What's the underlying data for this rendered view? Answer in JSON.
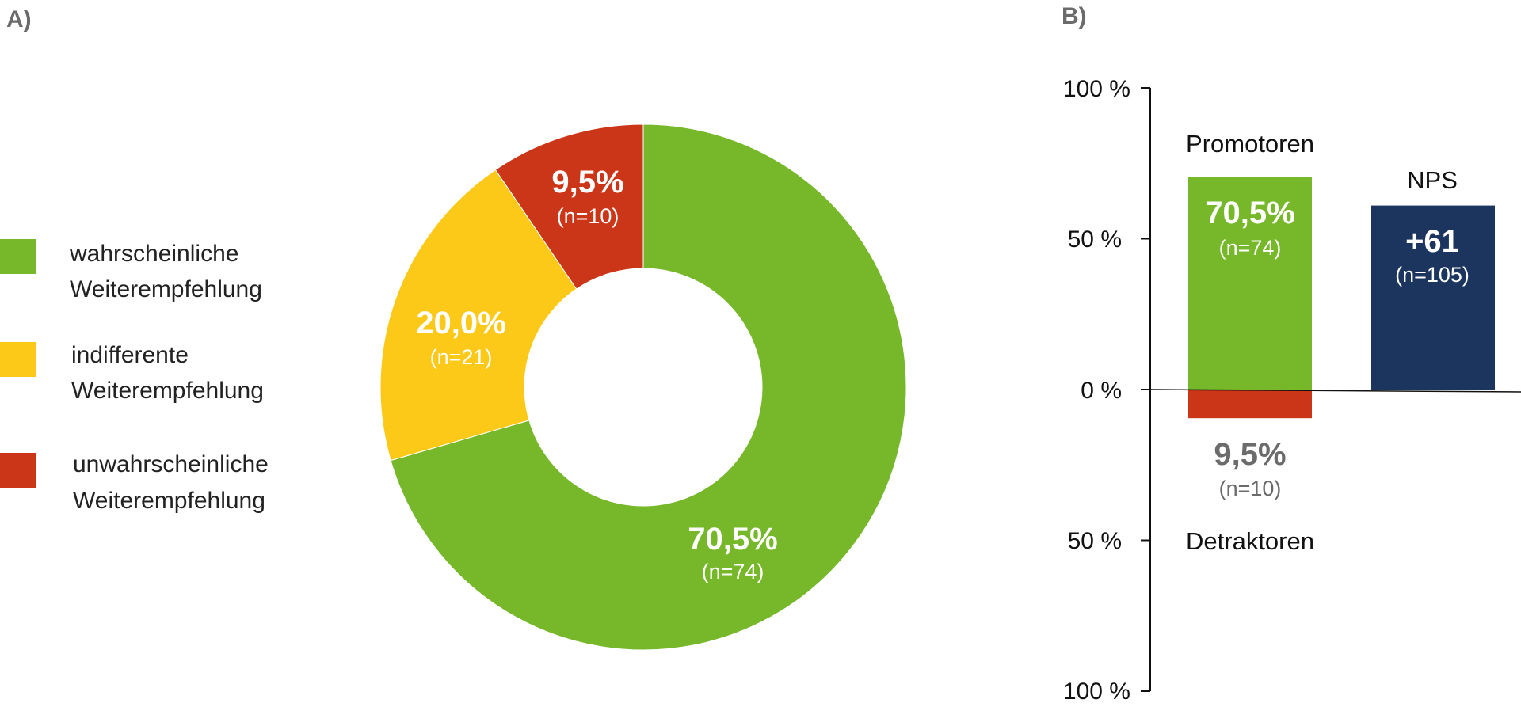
{
  "panels": {
    "a": "A)",
    "b": "B)"
  },
  "colors": {
    "green": "#76b82a",
    "yellow": "#fdc919",
    "red": "#cc3618",
    "navy": "#1c355e",
    "gray": "#6b6b6b"
  },
  "chart_data": [
    {
      "type": "pie",
      "variant": "donut",
      "legend_position": "left",
      "slices": [
        {
          "label": "wahrscheinliche Weiterempfehlung",
          "legend_lines": [
            "wahrscheinliche",
            "Weiterempfehlung"
          ],
          "value": 70.5,
          "value_label": "70,5%",
          "n_label": "(n=74)",
          "color": "#76b82a"
        },
        {
          "label": "indifferente Weiterempfehlung",
          "legend_lines": [
            "indifferente",
            "Weiterempfehlung"
          ],
          "value": 20.0,
          "value_label": "20,0%",
          "n_label": "(n=21)",
          "color": "#fdc919"
        },
        {
          "label": "unwahrscheinliche Weiterempfehlung",
          "legend_lines": [
            "unwahrscheinliche",
            "Weiterempfehlung"
          ],
          "value": 9.5,
          "value_label": "9,5%",
          "n_label": "(n=10)",
          "color": "#cc3618"
        }
      ]
    },
    {
      "type": "bar",
      "ylim": [
        -100,
        100
      ],
      "yticks": [
        {
          "value": 100,
          "label": "100 %"
        },
        {
          "value": 50,
          "label": "50 %"
        },
        {
          "value": 0,
          "label": "0 %"
        },
        {
          "value": -50,
          "label": "50 %"
        },
        {
          "value": -100,
          "label": "100 %"
        }
      ],
      "bars": [
        {
          "category": "Promotoren",
          "value": 70.5,
          "value_label": "70,5%",
          "n_label": "(n=74)",
          "color": "#76b82a"
        },
        {
          "category": "Detraktoren",
          "value": -9.5,
          "value_label": "9,5%",
          "n_label": "(n=10)",
          "color": "#cc3618"
        },
        {
          "category": "NPS",
          "value": 61,
          "value_label": "+61",
          "n_label": "(n=105)",
          "color": "#1c355e"
        }
      ]
    }
  ]
}
